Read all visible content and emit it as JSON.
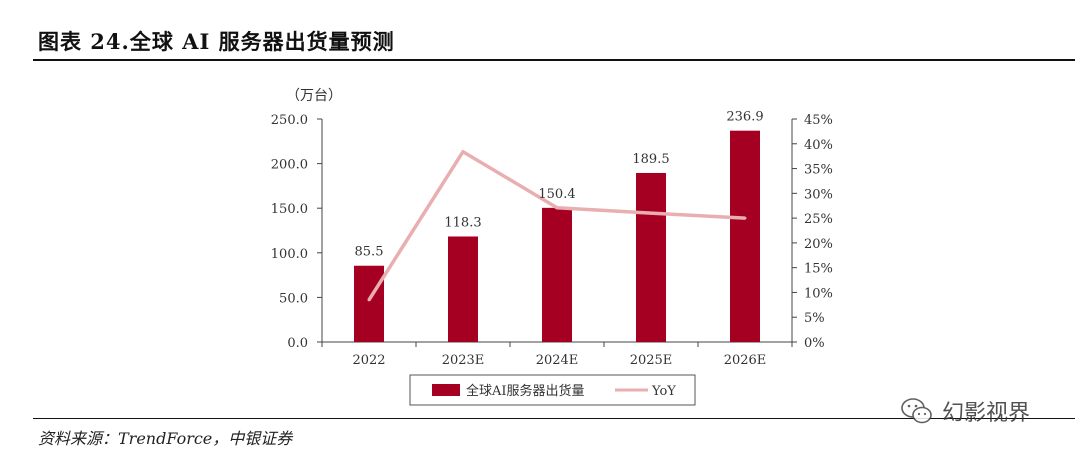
{
  "figure": {
    "title": "图表 24.全球 AI 服务器出货量预测",
    "source": "资料来源：TrendForce，中银证券"
  },
  "watermark": {
    "text": "幻影视界",
    "icon": "wechat-icon"
  },
  "colors": {
    "bar": "#A50021",
    "line": "#E8AEB0",
    "axis": "#444444",
    "text": "#333333"
  },
  "chart_data": {
    "type": "bar",
    "categories": [
      "2022",
      "2023E",
      "2024E",
      "2025E",
      "2026E"
    ],
    "series": [
      {
        "name": "全球AI服务器出货量",
        "type": "bar",
        "axis": "left",
        "values": [
          85.5,
          118.3,
          150.4,
          189.5,
          236.9
        ]
      },
      {
        "name": "YoY",
        "type": "line",
        "axis": "right",
        "values": [
          8.5,
          38.4,
          27.1,
          26.0,
          25.0
        ]
      }
    ],
    "data_labels": [
      "85.5",
      "118.3",
      "150.4",
      "189.5",
      "236.9"
    ],
    "y_left": {
      "unit_label": "（万台）",
      "ylim": [
        0,
        250
      ],
      "ticks": [
        "0.0",
        "50.0",
        "100.0",
        "150.0",
        "200.0",
        "250.0"
      ]
    },
    "y_right": {
      "ylim": [
        0,
        45
      ],
      "ticks": [
        "0%",
        "5%",
        "10%",
        "15%",
        "20%",
        "25%",
        "30%",
        "35%",
        "40%",
        "45%"
      ]
    },
    "legend_position": "bottom",
    "grid": false
  }
}
